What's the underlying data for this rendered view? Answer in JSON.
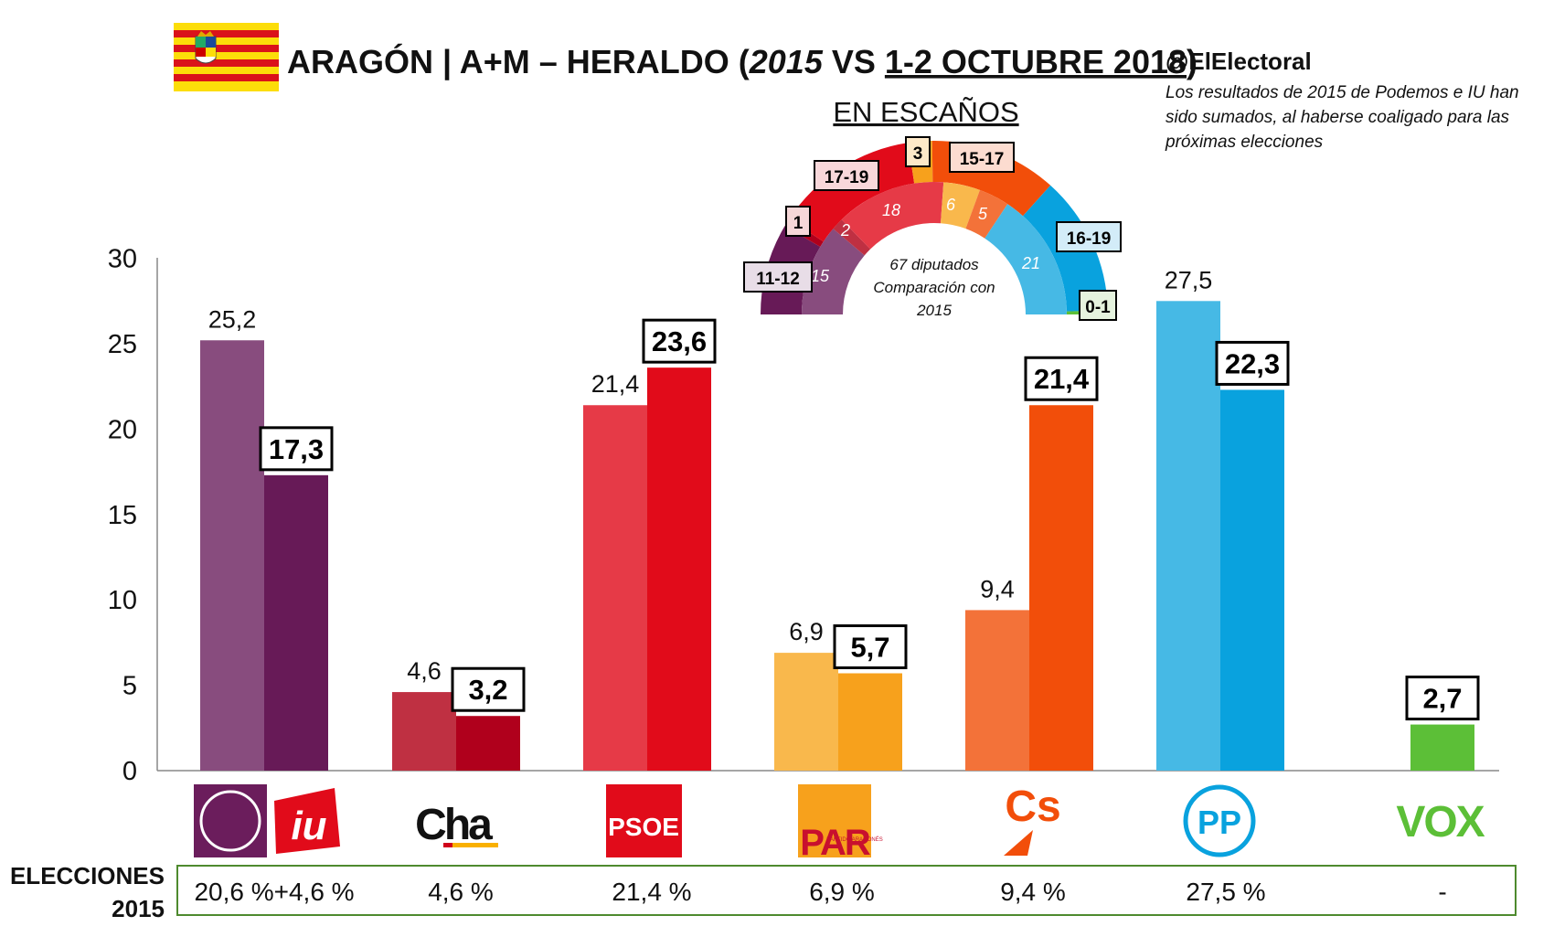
{
  "header": {
    "title_pre": "ARAGÓN | A+M – HERALDO (",
    "title_year": "2015",
    "title_vs": " VS ",
    "title_date": "1-2 OCTUBRE 2018",
    "title_close": ")",
    "handle": "@ElElectoral",
    "note_lines": [
      "Los resultados de 2015 de Podemos e IU han",
      "sido sumados, al haberse coaligado para las",
      "próximas elecciones"
    ]
  },
  "colors": {
    "podemos_2015": "#884C7E",
    "podemos_2018": "#671A57",
    "cha_2015": "#BF3042",
    "cha_2018": "#B0001C",
    "psoe_2015": "#E63A47",
    "psoe_2018": "#E10B1A",
    "par_2015": "#F9B84C",
    "par_2018": "#F7A11C",
    "cs_2015": "#F37239",
    "cs_2018": "#F24E0A",
    "pp_2015": "#46B9E5",
    "pp_2018": "#09A2DE",
    "vox": "#5CBF37",
    "results_border": "#4E8A2E"
  },
  "chart_data": {
    "type": "bar",
    "categories": [
      "Podemos+IU",
      "CHA",
      "PSOE",
      "PAR",
      "Cs",
      "PP",
      "VOX"
    ],
    "series": [
      {
        "values": [
          25.2,
          4.6,
          21.4,
          6.9,
          9.4,
          27.5,
          null
        ]
      },
      {
        "values": [
          17.3,
          3.2,
          23.6,
          5.7,
          21.4,
          22.3,
          2.7
        ]
      }
    ],
    "value_labels_2015": [
      "25,2",
      "4,6",
      "21,4",
      "6,9",
      "9,4",
      "27,5",
      ""
    ],
    "value_labels_2018": [
      "17,3",
      "3,2",
      "23,6",
      "5,7",
      "21,4",
      "22,3",
      "2,7"
    ],
    "yticks": [
      0,
      5,
      10,
      15,
      20,
      25,
      30
    ],
    "ylim": [
      0,
      30
    ],
    "grid": false
  },
  "seats": {
    "title": "EN ESCAÑOS",
    "center_lines": [
      "67 diputados",
      "Comparación con",
      "2015"
    ],
    "outer_labels": [
      "11-12",
      "1",
      "17-19",
      "3",
      "15-17",
      "16-19",
      "0-1"
    ],
    "inner_labels": [
      "15",
      "2",
      "18",
      "6",
      "5",
      "21"
    ],
    "seats_2015": [
      15,
      2,
      18,
      6,
      5,
      21,
      0
    ],
    "seats_2018_mid": [
      11.5,
      1,
      18,
      3,
      16,
      17.5,
      0.5
    ]
  },
  "logos": [
    "Podemos",
    "IU",
    "Cha",
    "PSOE",
    "PAR",
    "Cs",
    "PP",
    "VOX"
  ],
  "logo_text": {
    "iu": "iu",
    "cha": "Cha",
    "psoe": "PSOE",
    "par": "PAR",
    "par_small": "PARTIDO ARAGONÉS",
    "cs": "Cs",
    "pp": "PP",
    "vox": "VOX"
  },
  "elections": {
    "label_1": "ELECCIONES",
    "label_2": "2015",
    "results": [
      "20,6 %+4,6 %",
      "4,6 %",
      "21,4 %",
      "6,9 %",
      "9,4 %",
      "27,5 %",
      "-"
    ]
  }
}
